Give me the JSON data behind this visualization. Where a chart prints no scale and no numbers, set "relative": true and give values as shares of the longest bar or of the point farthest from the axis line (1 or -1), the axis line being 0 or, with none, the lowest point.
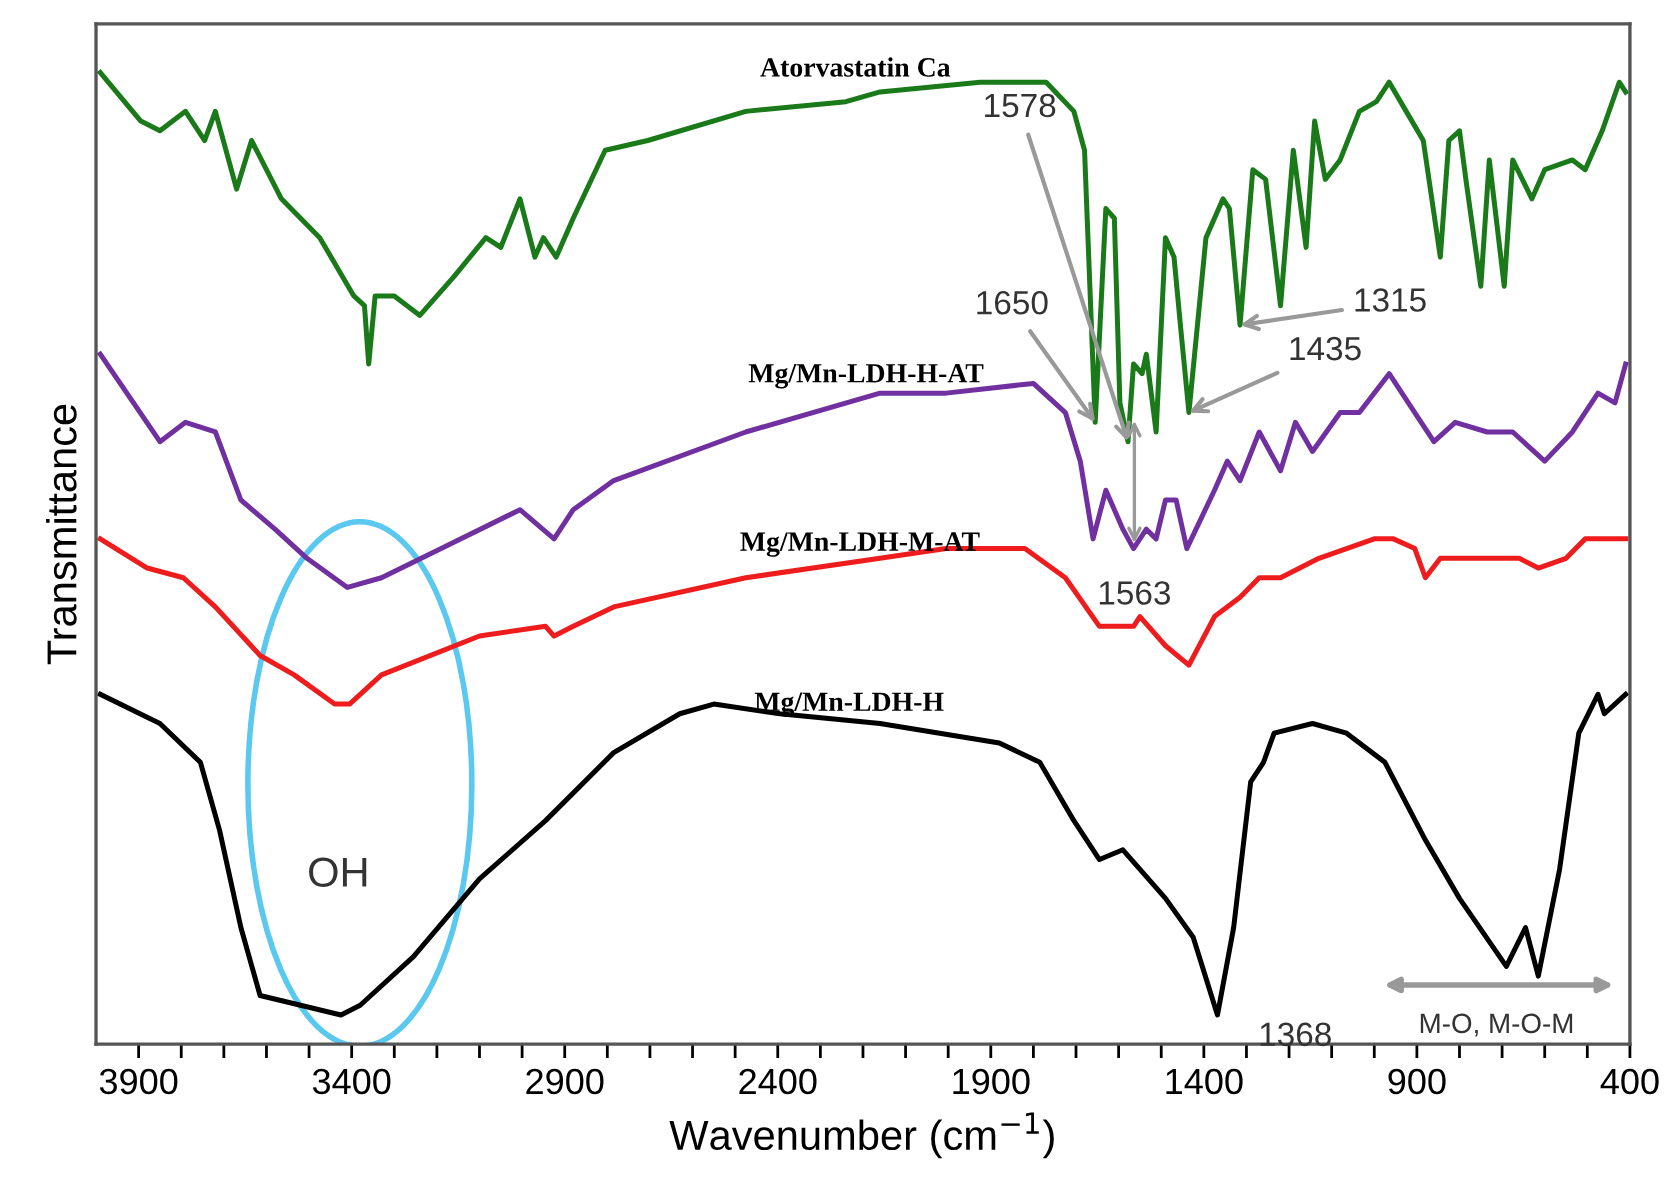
{
  "chart_data": {
    "type": "line",
    "xlabel": "Wavenumber (cm$^{−1}$)",
    "ylabel": "Transmittance",
    "relative": true,
    "grid": false,
    "legend": false,
    "marker": "none",
    "line_style": "solid",
    "xlim": [
      4000,
      400
    ],
    "xticks": [
      3900,
      {
        "value": 3800,
        "label": null
      },
      {
        "value": 3700,
        "label": null
      },
      {
        "value": 3600,
        "label": null
      },
      {
        "value": 3500,
        "label": null
      },
      3400,
      {
        "value": 3300,
        "label": null
      },
      {
        "value": 3200,
        "label": null
      },
      {
        "value": 3100,
        "label": null
      },
      {
        "value": 3000,
        "label": null
      },
      2900,
      {
        "value": 2800,
        "label": null
      },
      {
        "value": 2700,
        "label": null
      },
      {
        "value": 2600,
        "label": null
      },
      {
        "value": 2500,
        "label": null
      },
      2400,
      {
        "value": 2300,
        "label": null
      },
      {
        "value": 2200,
        "label": null
      },
      {
        "value": 2100,
        "label": null
      },
      {
        "value": 2000,
        "label": null
      },
      1900,
      {
        "value": 1800,
        "label": null
      },
      {
        "value": 1700,
        "label": null
      },
      {
        "value": 1600,
        "label": null
      },
      {
        "value": 1500,
        "label": null
      },
      1400,
      {
        "value": 1300,
        "label": null
      },
      {
        "value": 1200,
        "label": null
      },
      {
        "value": 1100,
        "label": null
      },
      {
        "value": 1000,
        "label": null
      },
      900,
      {
        "value": 800,
        "label": null
      },
      {
        "value": 700,
        "label": null
      },
      {
        "value": 600,
        "label": null
      },
      {
        "value": 500,
        "label": null
      },
      400
    ],
    "series": [
      {
        "name": "Atorvastatin Ca",
        "color": "#1a7a1a",
        "x": [
          3990,
          3895,
          3850,
          3790,
          3745,
          3720,
          3670,
          3635,
          3565,
          3475,
          3395,
          3370,
          3360,
          3345,
          3300,
          3240,
          3160,
          3085,
          3050,
          3005,
          2970,
          2950,
          2920,
          2880,
          2805,
          2705,
          2475,
          2240,
          2160,
          1925,
          1770,
          1705,
          1680,
          1655,
          1630,
          1610,
          1597,
          1578,
          1565,
          1545,
          1535,
          1512,
          1490,
          1470,
          1455,
          1435,
          1395,
          1355,
          1340,
          1315,
          1285,
          1255,
          1220,
          1190,
          1160,
          1140,
          1115,
          1080,
          1035,
          995,
          965,
          925,
          885,
          845,
          825,
          800,
          785,
          750,
          730,
          695,
          675,
          630,
          600,
          535,
          505,
          465,
          425,
          410
        ],
        "values": [
          1.0,
          0.95,
          0.94,
          0.96,
          0.93,
          0.96,
          0.88,
          0.93,
          0.87,
          0.83,
          0.77,
          0.76,
          0.7,
          0.77,
          0.77,
          0.75,
          0.79,
          0.83,
          0.82,
          0.87,
          0.81,
          0.83,
          0.81,
          0.85,
          0.92,
          0.93,
          0.96,
          0.97,
          0.98,
          0.99,
          0.99,
          0.96,
          0.92,
          0.64,
          0.86,
          0.85,
          0.66,
          0.62,
          0.7,
          0.69,
          0.71,
          0.63,
          0.83,
          0.81,
          0.74,
          0.65,
          0.83,
          0.87,
          0.86,
          0.74,
          0.9,
          0.89,
          0.76,
          0.92,
          0.82,
          0.95,
          0.89,
          0.91,
          0.96,
          0.97,
          0.99,
          0.96,
          0.93,
          0.81,
          0.93,
          0.94,
          0.89,
          0.78,
          0.91,
          0.78,
          0.91,
          0.87,
          0.9,
          0.91,
          0.9,
          0.94,
          0.99,
          0.98
        ]
      },
      {
        "name": "Mg/Mn-LDH-H-AT",
        "color": "#7030a0",
        "x": [
          3990,
          3850,
          3790,
          3720,
          3660,
          3580,
          3505,
          3410,
          3330,
          3190,
          3005,
          2925,
          2880,
          2785,
          2475,
          2160,
          2005,
          1800,
          1725,
          1690,
          1660,
          1630,
          1590,
          1565,
          1535,
          1512,
          1490,
          1465,
          1440,
          1375,
          1345,
          1315,
          1270,
          1220,
          1185,
          1145,
          1080,
          1035,
          965,
          905,
          860,
          810,
          735,
          675,
          600,
          535,
          475,
          435,
          410
        ],
        "values": [
          0.71,
          0.62,
          0.64,
          0.63,
          0.56,
          0.53,
          0.5,
          0.47,
          0.48,
          0.51,
          0.55,
          0.52,
          0.55,
          0.58,
          0.63,
          0.67,
          0.67,
          0.68,
          0.65,
          0.6,
          0.52,
          0.57,
          0.53,
          0.51,
          0.53,
          0.52,
          0.56,
          0.56,
          0.51,
          0.57,
          0.6,
          0.58,
          0.63,
          0.59,
          0.64,
          0.61,
          0.65,
          0.65,
          0.69,
          0.65,
          0.62,
          0.64,
          0.63,
          0.63,
          0.6,
          0.63,
          0.67,
          0.66,
          0.7
        ]
      },
      {
        "name": "Mg/Mn-LDH-M-AT",
        "color": "#ee1c1c",
        "x": [
          3990,
          3880,
          3795,
          3720,
          3615,
          3535,
          3440,
          3405,
          3330,
          3100,
          2945,
          2925,
          2880,
          2785,
          2475,
          2160,
          2005,
          1820,
          1725,
          1645,
          1565,
          1550,
          1490,
          1435,
          1375,
          1315,
          1270,
          1220,
          1175,
          1130,
          1065,
          1000,
          955,
          905,
          880,
          845,
          755,
          660,
          615,
          550,
          505,
          410
        ],
        "values": [
          0.52,
          0.49,
          0.48,
          0.45,
          0.4,
          0.38,
          0.35,
          0.35,
          0.38,
          0.42,
          0.43,
          0.42,
          0.43,
          0.45,
          0.48,
          0.5,
          0.51,
          0.51,
          0.48,
          0.43,
          0.43,
          0.44,
          0.41,
          0.39,
          0.44,
          0.46,
          0.48,
          0.48,
          0.49,
          0.5,
          0.51,
          0.52,
          0.52,
          0.51,
          0.48,
          0.5,
          0.5,
          0.5,
          0.49,
          0.5,
          0.52,
          0.52
        ]
      },
      {
        "name": "Mg/Mn-LDH-H",
        "color": "#000000",
        "x": [
          3990,
          3850,
          3755,
          3710,
          3660,
          3615,
          3520,
          3425,
          3380,
          3255,
          3100,
          2945,
          2785,
          2630,
          2550,
          2395,
          2160,
          1880,
          1785,
          1705,
          1645,
          1590,
          1490,
          1425,
          1368,
          1330,
          1290,
          1260,
          1235,
          1145,
          1065,
          975,
          880,
          800,
          690,
          645,
          615,
          565,
          520,
          475,
          460,
          410
        ],
        "values": [
          0.36,
          0.33,
          0.29,
          0.22,
          0.12,
          0.05,
          0.04,
          0.03,
          0.04,
          0.09,
          0.17,
          0.23,
          0.3,
          0.34,
          0.35,
          0.34,
          0.33,
          0.31,
          0.29,
          0.23,
          0.19,
          0.2,
          0.15,
          0.11,
          0.03,
          0.12,
          0.27,
          0.29,
          0.32,
          0.33,
          0.32,
          0.29,
          0.21,
          0.15,
          0.08,
          0.12,
          0.07,
          0.18,
          0.32,
          0.36,
          0.34,
          0.36
        ]
      }
    ],
    "annotations": [
      {
        "text": "1578",
        "x": 1578,
        "y": 0.62
      },
      {
        "text": "1650",
        "x": 1655,
        "y": 0.64
      },
      {
        "text": "1315",
        "x": 1315,
        "y": 0.74
      },
      {
        "text": "1435",
        "x": 1435,
        "y": 0.65
      },
      {
        "text": "1563",
        "x": 1563,
        "y": 0.51
      },
      {
        "text": "1368",
        "x": 1368,
        "y": 0.03
      },
      "OH",
      "M-O, M-O-M"
    ]
  }
}
